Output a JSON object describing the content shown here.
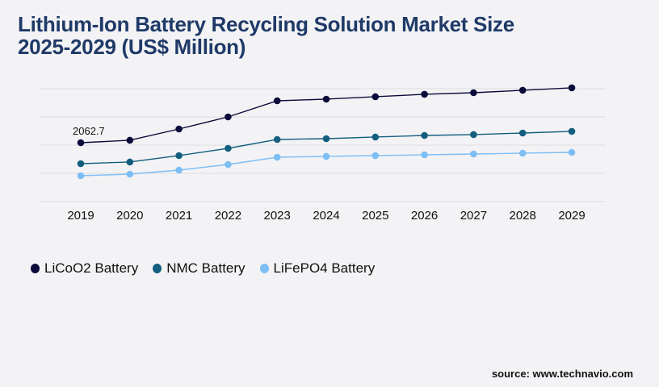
{
  "title_line1": "Lithium-Ion Battery Recycling Solution Market Size",
  "title_line2": "2025-2029 (US$ Million)",
  "source": "source: www.technavio.com",
  "chart_data": {
    "type": "line",
    "title": "Lithium-Ion Battery Recycling Solution Market Size 2025-2029 (US$ Million)",
    "categories": [
      "2019",
      "2020",
      "2021",
      "2022",
      "2023",
      "2024",
      "2025",
      "2026",
      "2027",
      "2028",
      "2029"
    ],
    "ylim": [
      0,
      3956
    ],
    "grid": true,
    "legend_placement": "bottom-left",
    "annotations": [
      {
        "series": "LiCoO2 Battery",
        "category": "2019",
        "label": "2062.7"
      }
    ],
    "series": [
      {
        "name": "LiCoO2 Battery",
        "color": "#0b0b3b",
        "values": [
          2062.7,
          2148,
          2543,
          2967,
          3532,
          3589,
          3674,
          3759,
          3815,
          3900,
          3985
        ]
      },
      {
        "name": "NMC Battery",
        "color": "#135e7e",
        "values": [
          1328,
          1385,
          1611,
          1865,
          2176,
          2204,
          2261,
          2317,
          2346,
          2402,
          2459
        ]
      },
      {
        "name": "LiFePO4 Battery",
        "color": "#7dbef5",
        "values": [
          904,
          961,
          1102,
          1300,
          1554,
          1583,
          1611,
          1639,
          1667,
          1696,
          1724
        ]
      }
    ]
  }
}
